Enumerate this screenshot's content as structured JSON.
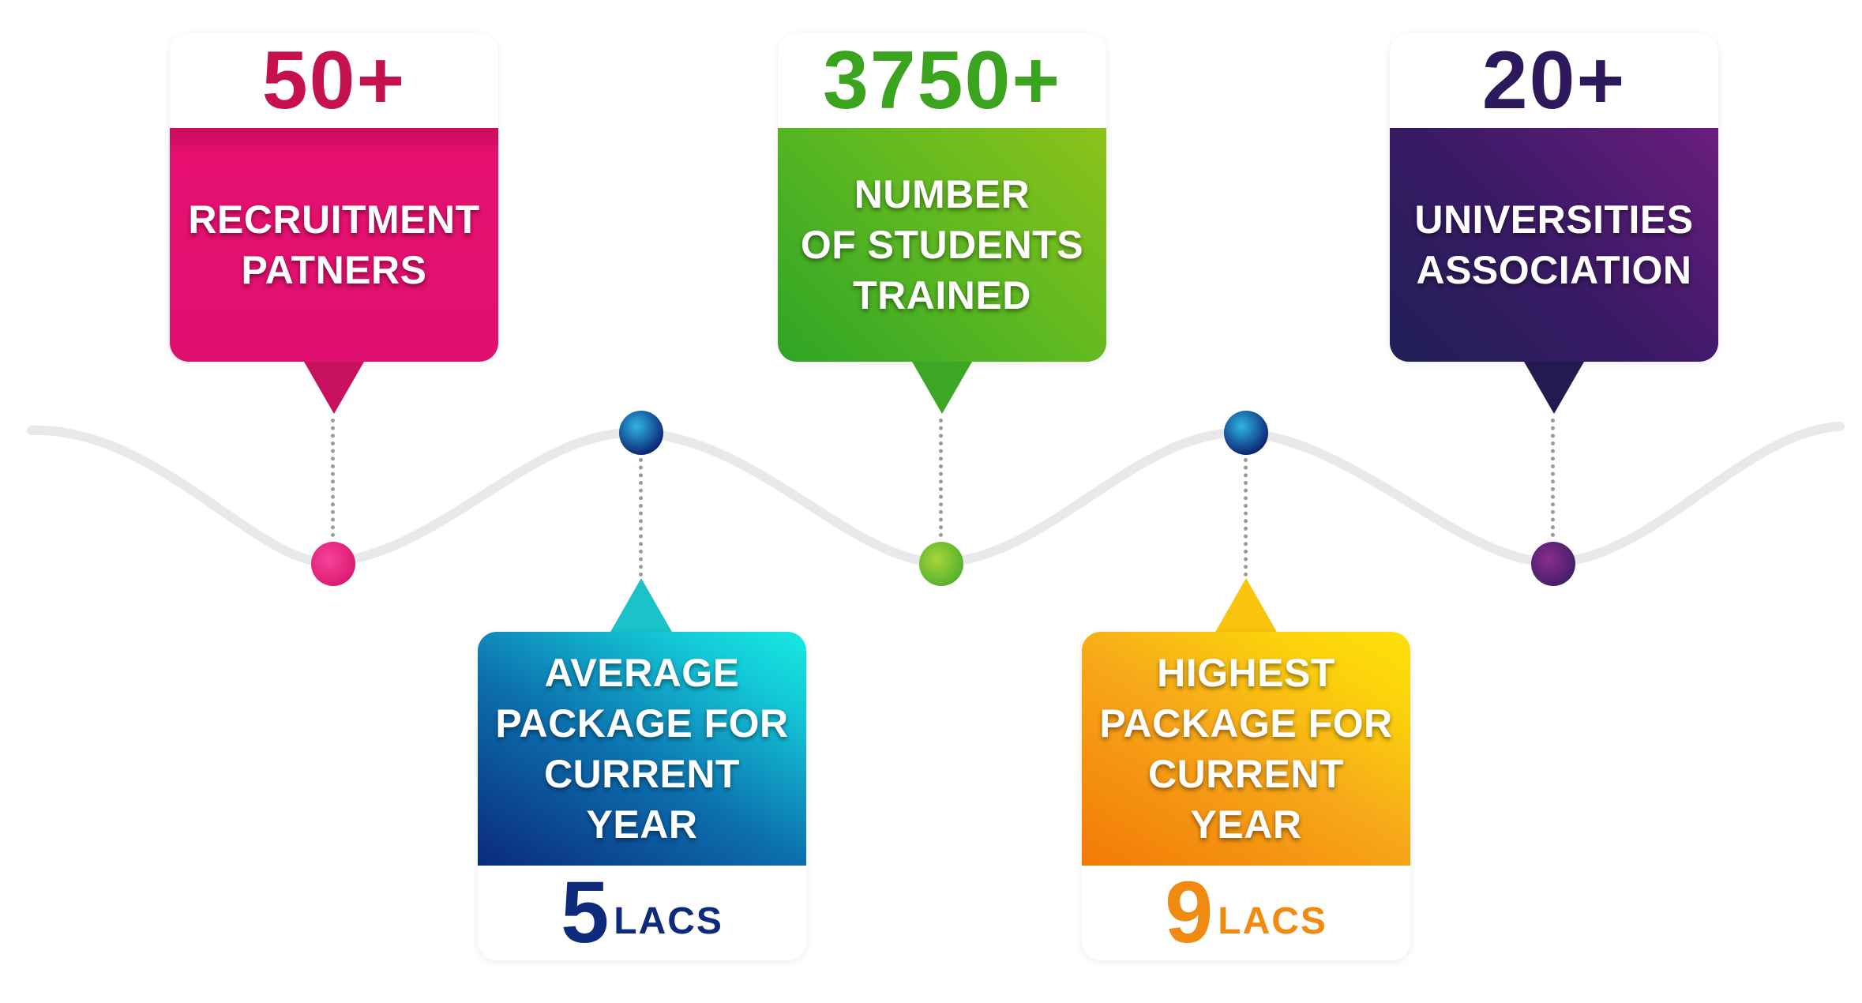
{
  "cards": [
    {
      "value": "50+",
      "label_lines": [
        "RECRUITMENT",
        "PATNERS"
      ],
      "color": "#e0106e",
      "value_color": "#c5124f"
    },
    {
      "value": "5",
      "unit": "LACS",
      "label_lines": [
        "AVERAGE",
        "PACKAGE FOR",
        "CURRENT",
        "YEAR"
      ],
      "color": "#0c8fb8",
      "value_color": "#0e2a7a"
    },
    {
      "value": "3750+",
      "label_lines": [
        "NUMBER",
        "OF STUDENTS",
        "TRAINED"
      ],
      "color": "#5cb821",
      "value_color": "#3aa41e"
    },
    {
      "value": "9",
      "unit": "LACS",
      "label_lines": [
        "HIGHEST",
        "PACKAGE FOR",
        "CURRENT",
        "YEAR"
      ],
      "color": "#f7a81a",
      "value_color": "#f08a10"
    },
    {
      "value": "20+",
      "label_lines": [
        "UNIVERSITIES",
        "ASSOCIATION"
      ],
      "color": "#3c1a66",
      "value_color": "#2d1a5c"
    }
  ]
}
